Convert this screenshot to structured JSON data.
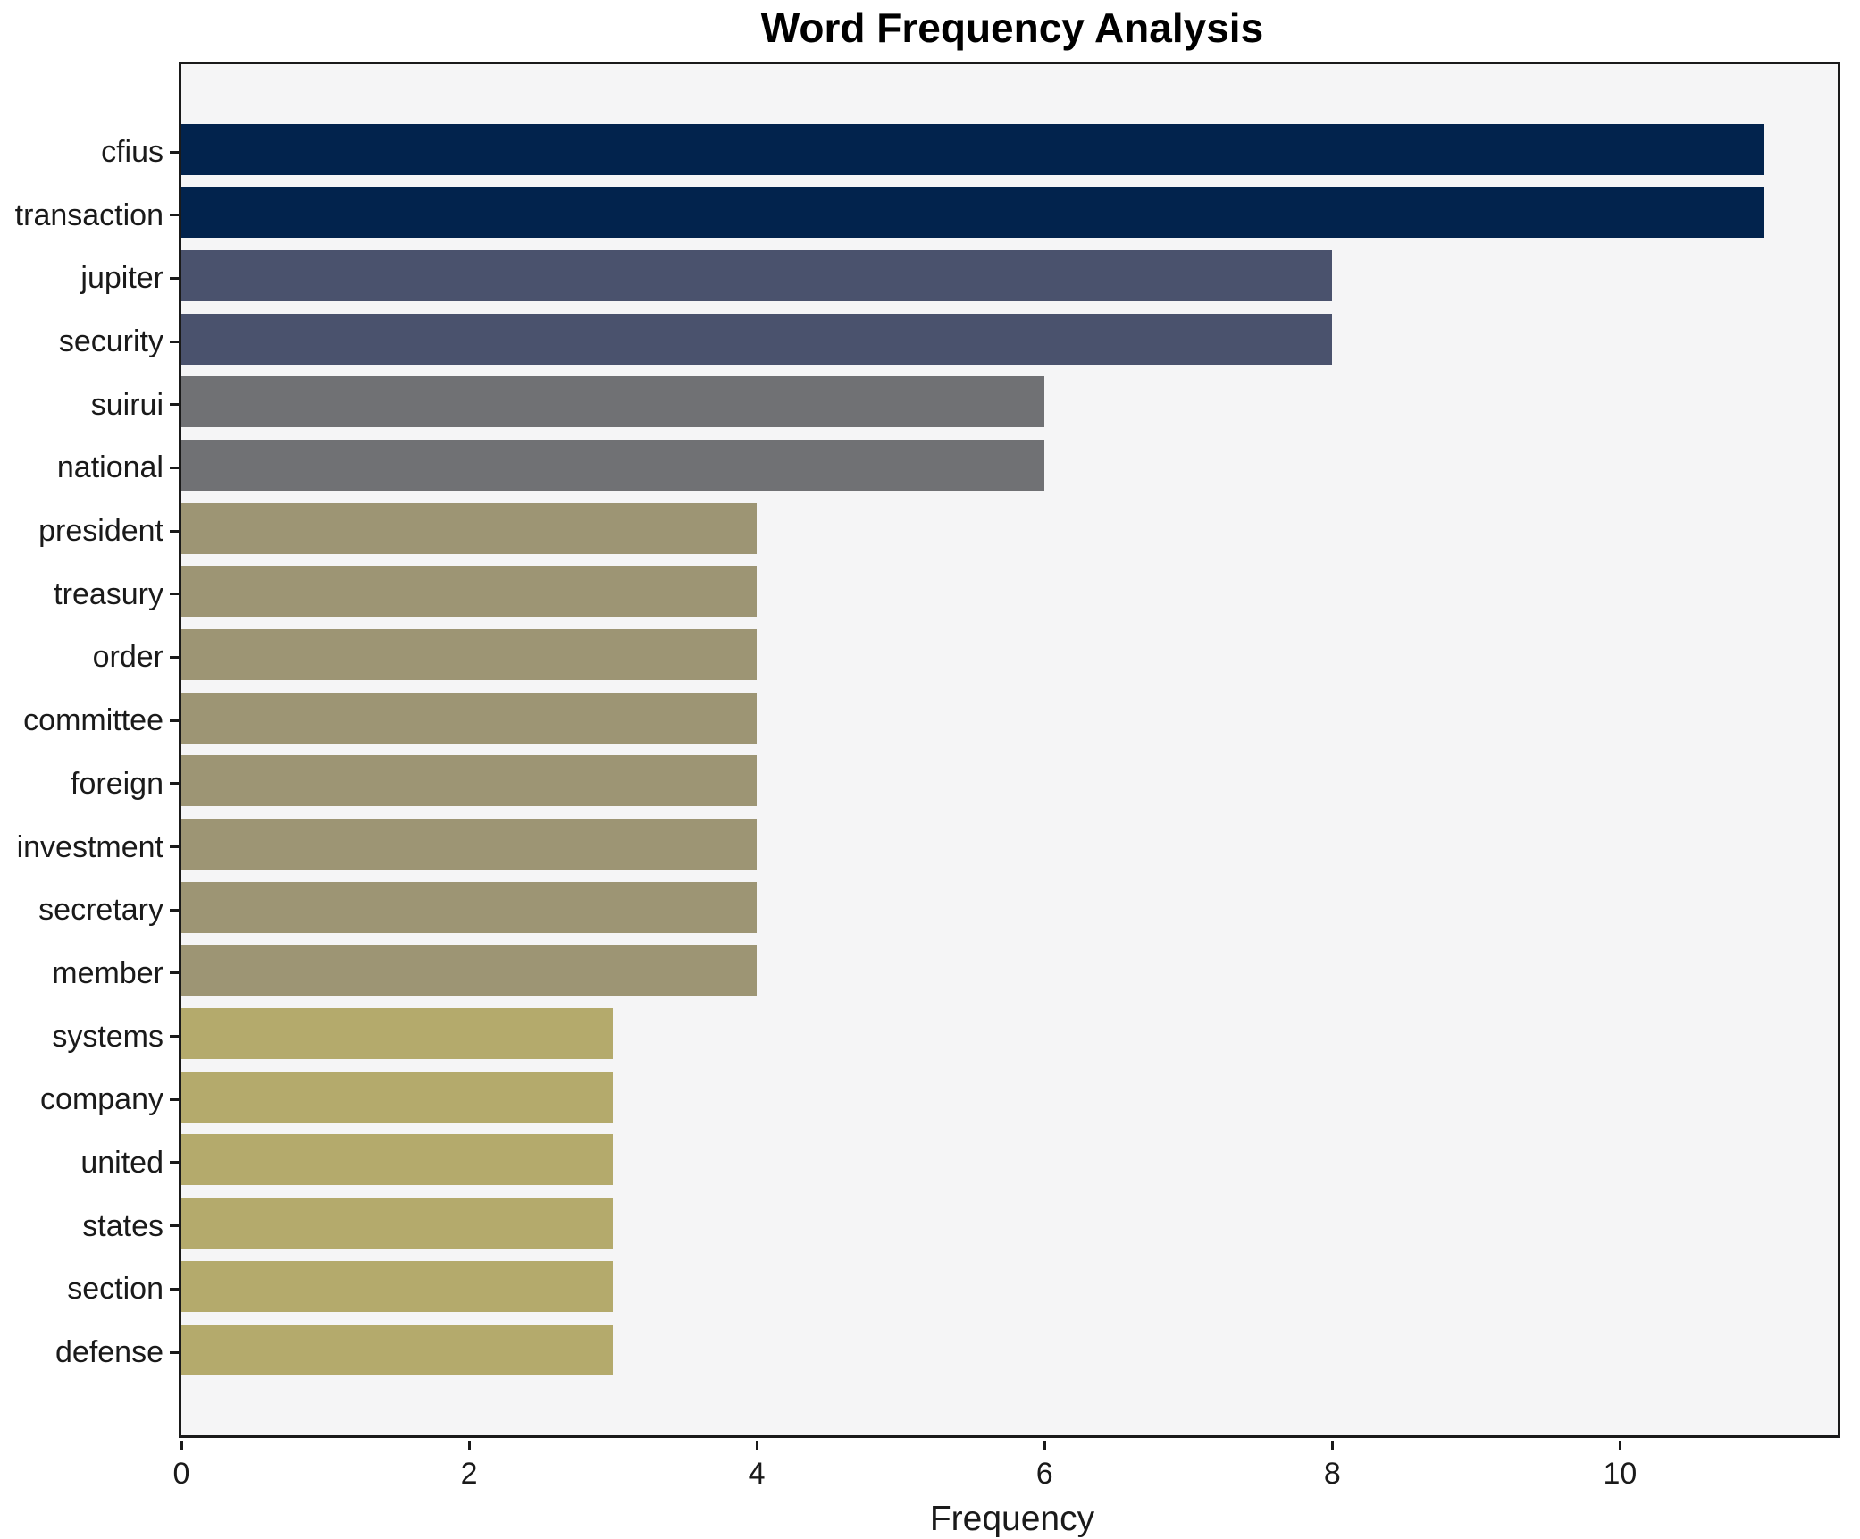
{
  "title": "Word Frequency Analysis",
  "xlabel": "Frequency",
  "chart_data": {
    "type": "bar",
    "orientation": "horizontal",
    "title": "Word Frequency Analysis",
    "xlabel": "Frequency",
    "ylabel": "",
    "categories": [
      "cfius",
      "transaction",
      "jupiter",
      "security",
      "suirui",
      "national",
      "president",
      "treasury",
      "order",
      "committee",
      "foreign",
      "investment",
      "secretary",
      "member",
      "systems",
      "company",
      "united",
      "states",
      "section",
      "defense"
    ],
    "values": [
      11,
      11,
      8,
      8,
      6,
      6,
      4,
      4,
      4,
      4,
      4,
      4,
      4,
      4,
      3,
      3,
      3,
      3,
      3,
      3
    ],
    "bar_colors": [
      "#02234d",
      "#02234d",
      "#4a526d",
      "#4a526d",
      "#707174",
      "#707174",
      "#9d9574",
      "#9d9574",
      "#9d9574",
      "#9d9574",
      "#9d9574",
      "#9d9574",
      "#9d9574",
      "#9d9574",
      "#b4aa6c",
      "#b4aa6c",
      "#b4aa6c",
      "#b4aa6c",
      "#b4aa6c",
      "#b4aa6c"
    ],
    "x_ticks": [
      0,
      2,
      4,
      6,
      8,
      10
    ],
    "xlim": [
      0,
      11.55
    ],
    "grid": false,
    "legend": null,
    "plot_bg": "#f5f5f6",
    "fig_bg": "#ffffff",
    "spine_color": "#1a1a1a"
  }
}
